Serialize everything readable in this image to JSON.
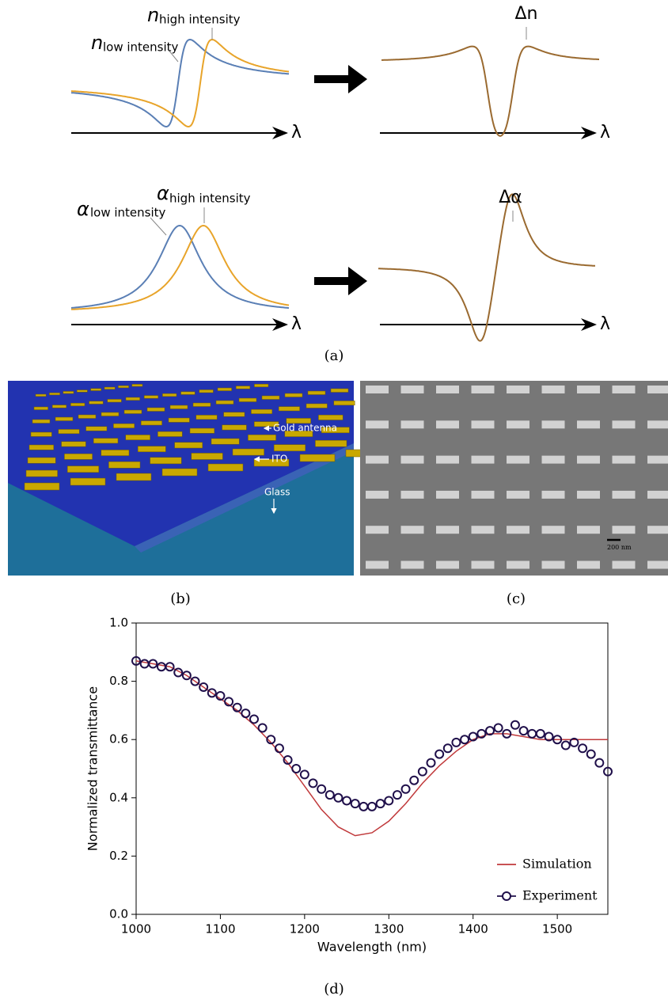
{
  "panel_a": {
    "n_high": {
      "symbol": "n",
      "subscript": "high intensity"
    },
    "n_low": {
      "symbol": "n",
      "subscript": "low intensity"
    },
    "delta_n": "Δn",
    "alpha_high": {
      "symbol": "α",
      "subscript": "high intensity"
    },
    "alpha_low": {
      "symbol": "α",
      "subscript": "low intensity"
    },
    "delta_alpha": "Δα",
    "axis_label": "λ",
    "label": "(a)"
  },
  "panel_b": {
    "gold": "Gold antenna",
    "ito": "ITO",
    "glass": "Glass",
    "label": "(b)"
  },
  "panel_c": {
    "scale": "200 nm",
    "label": "(c)"
  },
  "panel_d": {
    "label": "(d)"
  },
  "chart_data": {
    "type": "line-scatter",
    "x_label": "Wavelength (nm)",
    "y_label": "Normalized  transmittance",
    "xlim": [
      1000,
      1560
    ],
    "xticks": [
      1000,
      1100,
      1200,
      1300,
      1400,
      1500
    ],
    "ylim": [
      0,
      1
    ],
    "yticks": [
      {
        "value": 0,
        "label": "0.0"
      },
      0.2,
      0.4,
      0.6,
      0.8,
      {
        "value": 1,
        "label": "1.0"
      }
    ],
    "legend": "lower right",
    "series": [
      {
        "name": "Simulation",
        "color": "#c0393b",
        "marker": "line",
        "x": [
          1000,
          1020,
          1040,
          1060,
          1080,
          1100,
          1120,
          1140,
          1160,
          1180,
          1200,
          1220,
          1240,
          1260,
          1280,
          1300,
          1320,
          1340,
          1360,
          1380,
          1400,
          1420,
          1440,
          1460,
          1480,
          1500,
          1520,
          1540,
          1560
        ],
        "values": [
          0.87,
          0.86,
          0.85,
          0.82,
          0.78,
          0.74,
          0.7,
          0.65,
          0.59,
          0.52,
          0.44,
          0.36,
          0.3,
          0.27,
          0.28,
          0.32,
          0.38,
          0.45,
          0.51,
          0.56,
          0.6,
          0.62,
          0.62,
          0.61,
          0.6,
          0.6,
          0.6,
          0.6,
          0.6
        ]
      },
      {
        "name": "Experiment",
        "color": "#1f0f4a",
        "marker": "circle",
        "x": [
          1000,
          1010,
          1020,
          1030,
          1040,
          1050,
          1060,
          1070,
          1080,
          1090,
          1100,
          1110,
          1120,
          1130,
          1140,
          1150,
          1160,
          1170,
          1180,
          1190,
          1200,
          1210,
          1220,
          1230,
          1240,
          1250,
          1260,
          1270,
          1280,
          1290,
          1300,
          1310,
          1320,
          1330,
          1340,
          1350,
          1360,
          1370,
          1380,
          1390,
          1400,
          1410,
          1420,
          1430,
          1440,
          1450,
          1460,
          1470,
          1480,
          1490,
          1500,
          1510,
          1520,
          1530,
          1540,
          1550,
          1560
        ],
        "values": [
          0.87,
          0.86,
          0.86,
          0.85,
          0.85,
          0.83,
          0.82,
          0.8,
          0.78,
          0.76,
          0.75,
          0.73,
          0.71,
          0.69,
          0.67,
          0.64,
          0.6,
          0.57,
          0.53,
          0.5,
          0.48,
          0.45,
          0.43,
          0.41,
          0.4,
          0.39,
          0.38,
          0.37,
          0.37,
          0.38,
          0.39,
          0.41,
          0.43,
          0.46,
          0.49,
          0.52,
          0.55,
          0.57,
          0.59,
          0.6,
          0.61,
          0.62,
          0.63,
          0.64,
          0.62,
          0.65,
          0.63,
          0.62,
          0.62,
          0.61,
          0.6,
          0.58,
          0.59,
          0.57,
          0.55,
          0.52,
          0.49
        ]
      }
    ]
  }
}
